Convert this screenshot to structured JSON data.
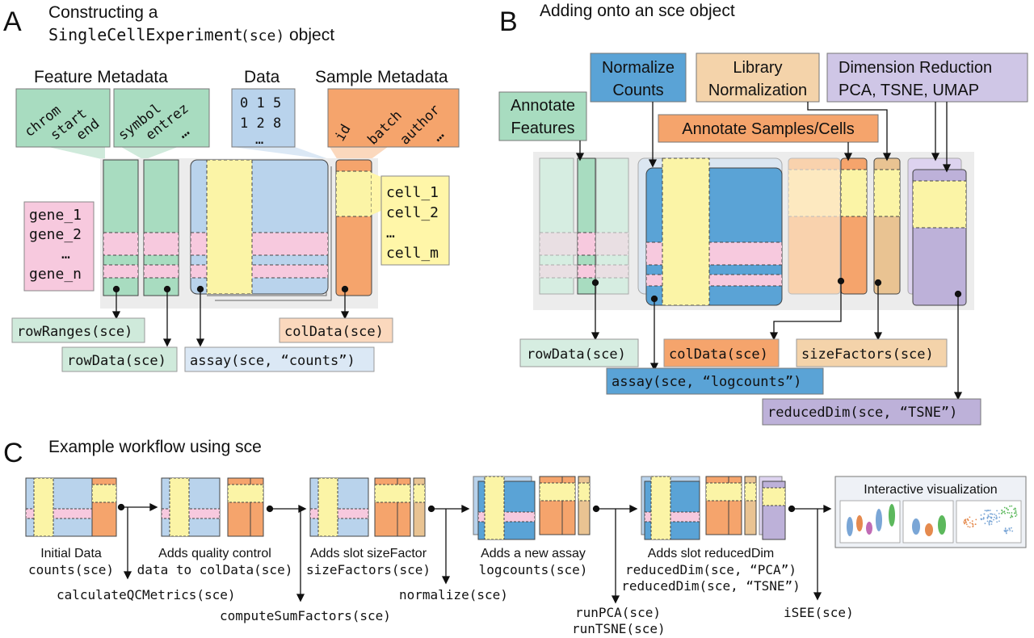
{
  "panelA": {
    "letter": "A",
    "title_line1": "Constructing a",
    "title_code": "SingleCellExperiment",
    "title_sce": "(sce)",
    "title_rest": "object",
    "feature_metadata": "Feature Metadata",
    "feature_cols_1": [
      "chrom",
      "start",
      "end"
    ],
    "feature_cols_2": [
      "symbol",
      "entrez",
      "…"
    ],
    "data_label": "Data",
    "data_row1": "0 1 5",
    "data_row2": "1 2 8",
    "data_row3": "…",
    "sample_metadata": "Sample Metadata",
    "sample_cols": [
      "id",
      "batch",
      "author",
      "…"
    ],
    "genes": [
      "gene_1",
      "gene_2",
      "…",
      "gene_n"
    ],
    "cells": [
      "cell_1",
      "cell_2",
      "…",
      "cell_m"
    ],
    "fn_rowranges": "rowRanges(sce)",
    "fn_rowdata": "rowData(sce)",
    "fn_assay": "assay(sce, “counts”)",
    "fn_coldata": "colData(sce)"
  },
  "panelB": {
    "letter": "B",
    "title": "Adding onto an sce object",
    "normalize_counts_1": "Normalize",
    "normalize_counts_2": "Counts",
    "library_norm_1": "Library",
    "library_norm_2": "Normalization",
    "dimred_1": "Dimension Reduction",
    "dimred_2": "PCA, TSNE, UMAP",
    "annotate_features_1": "Annotate",
    "annotate_features_2": "Features",
    "annotate_samples": "Annotate Samples/Cells",
    "fn_rowdata": "rowData(sce)",
    "fn_coldata": "colData(sce)",
    "fn_sizefactors": "sizeFactors(sce)",
    "fn_assay": "assay(sce, “logcounts”)",
    "fn_reduceddim": "reducedDim(sce, “TSNE”)"
  },
  "panelC": {
    "letter": "C",
    "title": "Example workflow using sce",
    "steps": [
      {
        "line1": "Initial Data",
        "line2": "counts(sce)",
        "line3": ""
      },
      {
        "line1": "Adds quality control",
        "line2": "data to colData(sce)",
        "line3": ""
      },
      {
        "line1": "Adds slot sizeFactor",
        "line2": "sizeFactors(sce)",
        "line3": ""
      },
      {
        "line1": "Adds a new assay",
        "line2": "logcounts(sce)",
        "line3": ""
      },
      {
        "line1": "Adds slot reducedDim",
        "line2": "reducedDim(sce, “PCA”)",
        "line3": "reducedDim(sce, “TSNE”)"
      }
    ],
    "functions": [
      "calculateQCMetrics(sce)",
      "computeSumFactors(sce)",
      "normalize(sce)",
      "runPCA(sce)",
      "runTSNE(sce)",
      "iSEE(sce)"
    ],
    "interactive_title": "Interactive visualization"
  },
  "colors": {
    "green": "#a8dcc0",
    "green_light": "#cfeadb",
    "blue": "#b9d3ec",
    "blue_dark": "#5aa3d6",
    "orange": "#f5a46c",
    "orange_light": "#f9d2ad",
    "yellow": "#fbf4a6",
    "pink": "#f7c9de",
    "tan": "#e9c392",
    "purple": "#bdb1d9",
    "gray_bg": "#ececec"
  }
}
